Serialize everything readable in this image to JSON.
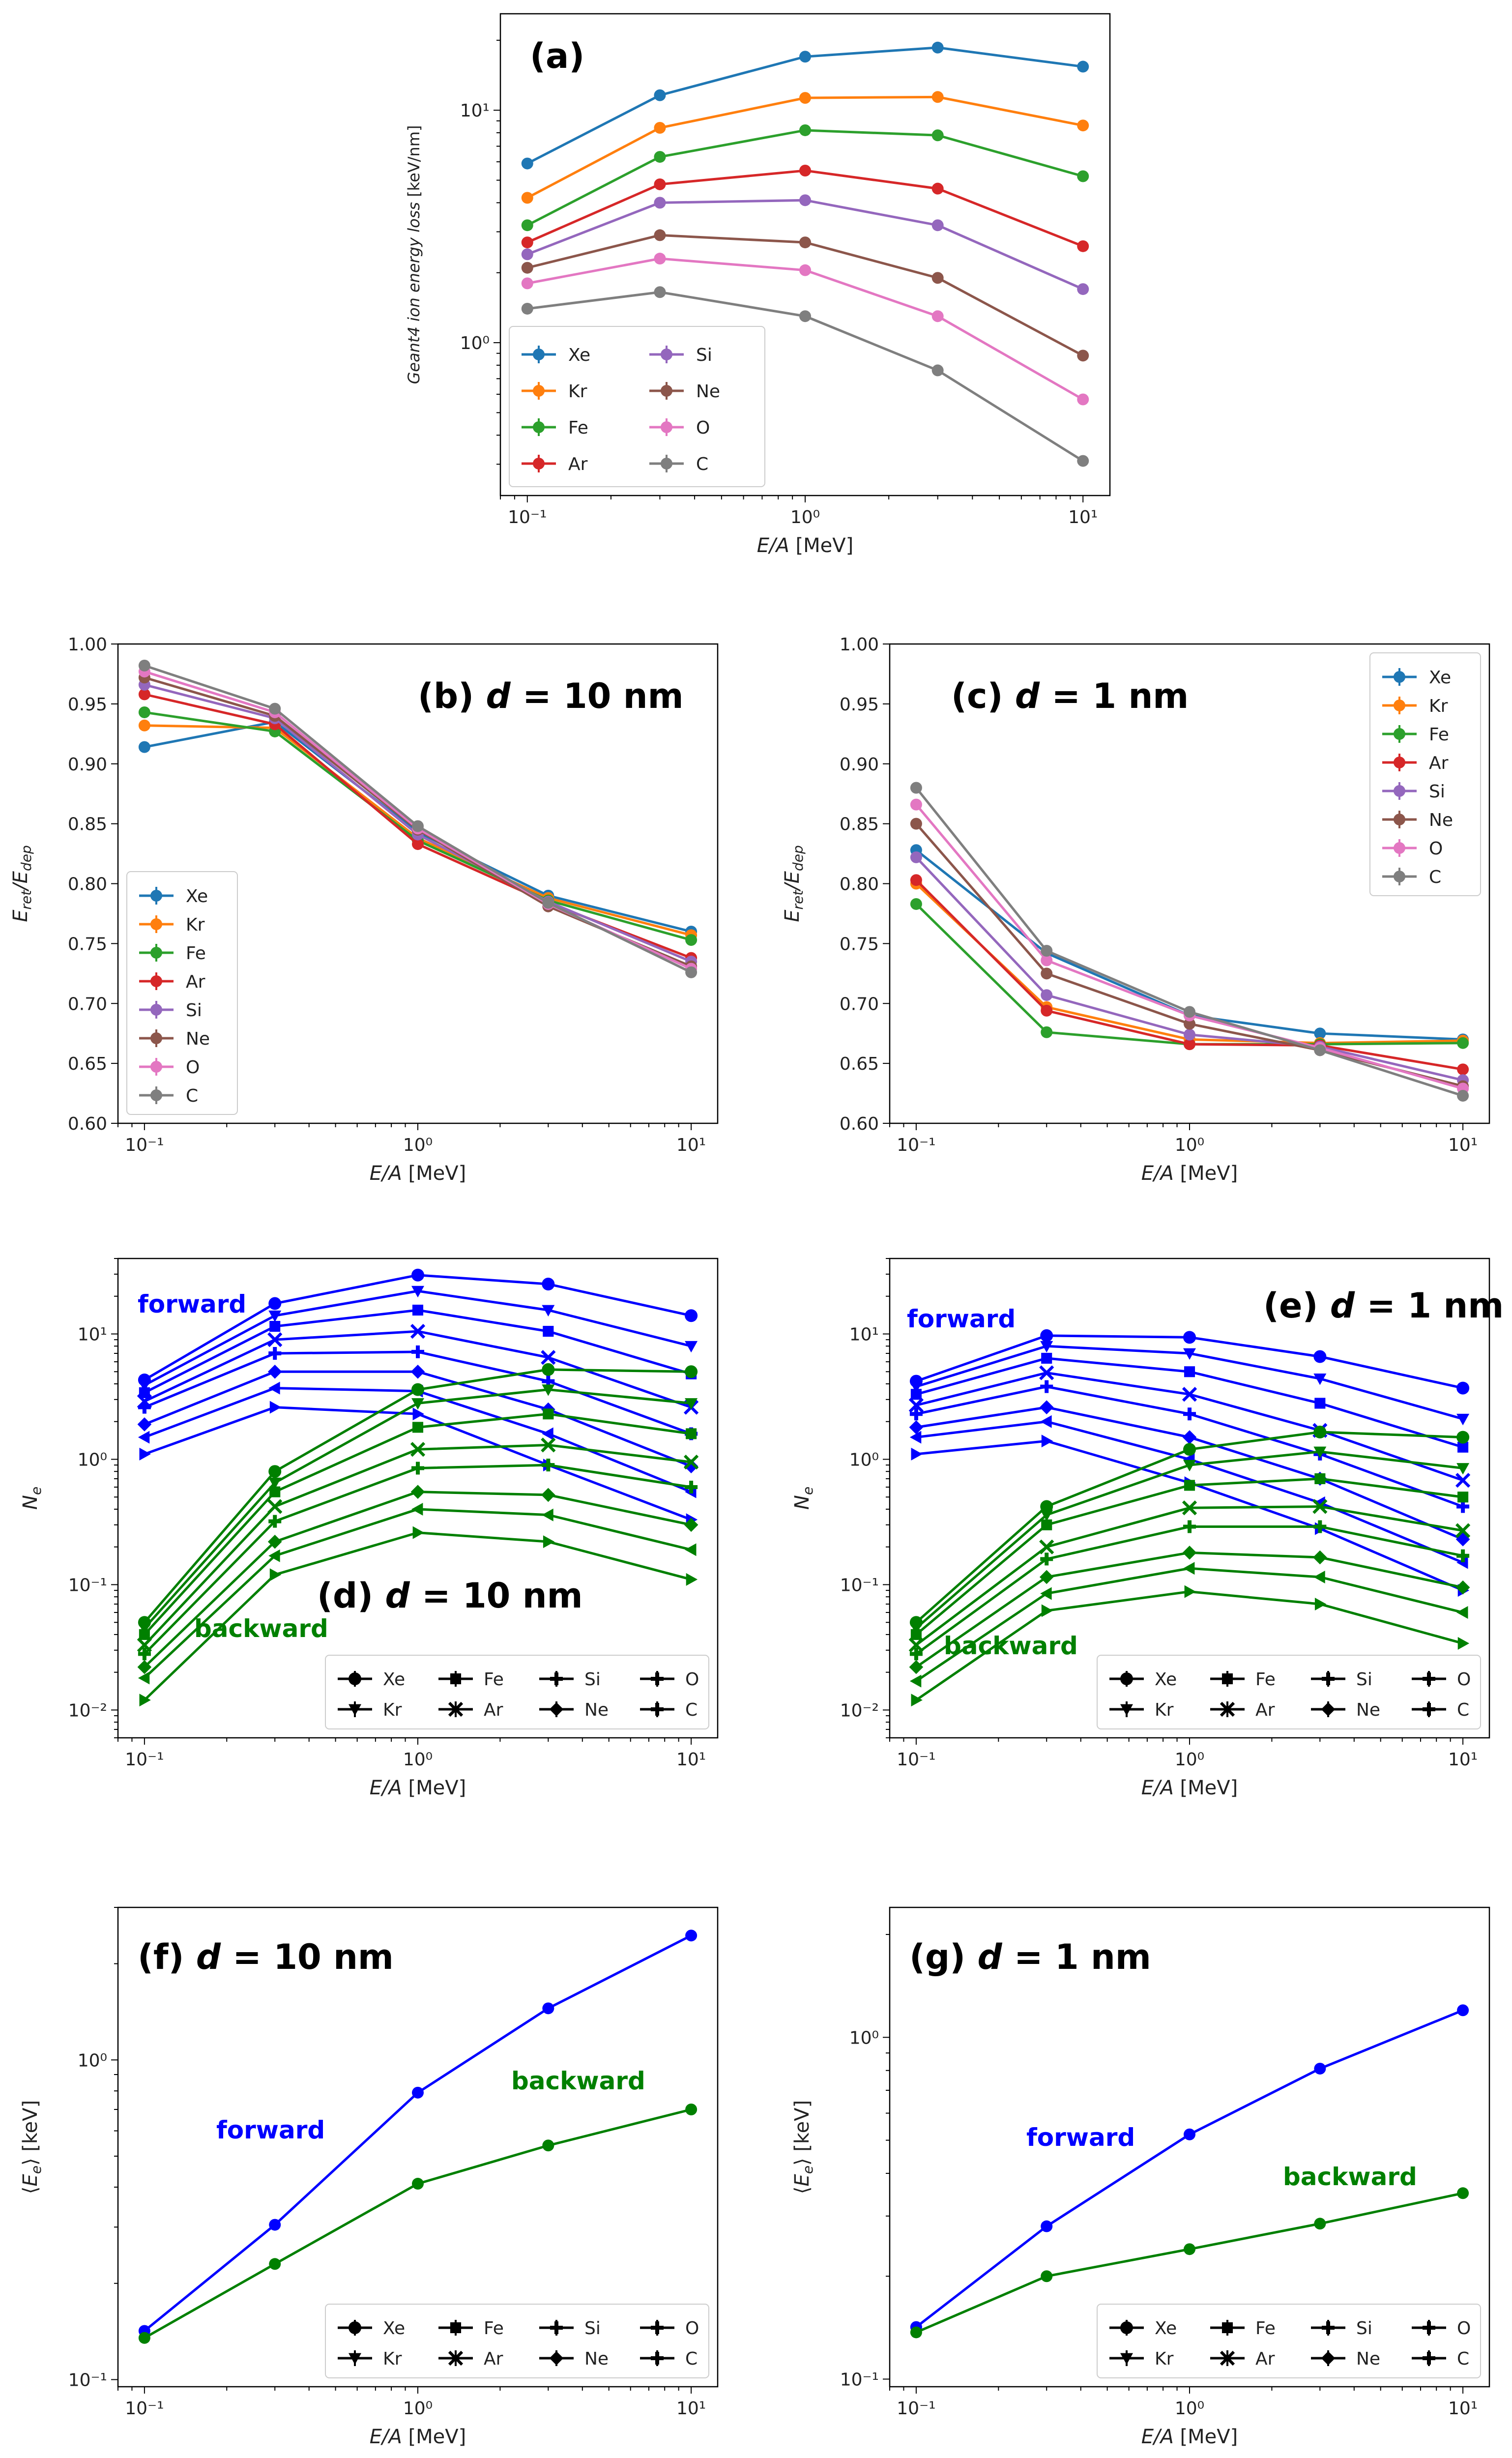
{
  "figure": {
    "caption": ""
  },
  "series_colors": {
    "Xe": "#1f77b4",
    "Kr": "#ff7f0e",
    "Fe": "#2ca02c",
    "Ar": "#d62728",
    "Si": "#9467bd",
    "Ne": "#8c564b",
    "O": "#e377c2",
    "C": "#7f7f7f",
    "forward": "#0000ff",
    "backward": "#008000"
  },
  "chart_data": [
    {
      "id": "a",
      "type": "line",
      "title": "(a)",
      "xlabel": "E/A [MeV]",
      "ylabel": "Geant4 ion energy loss [keV/nm]",
      "xscale": "log",
      "yscale": "log",
      "xlim": [
        0.08,
        12.5
      ],
      "ylim": [
        0.22,
        26
      ],
      "xticks": [
        "10⁻¹",
        "10⁰",
        "10¹"
      ],
      "yticks": [
        "10⁰",
        "10¹"
      ],
      "x": [
        0.1,
        0.3,
        1,
        3,
        10
      ],
      "legend_position": "lower-left",
      "legend_cols": 2,
      "series": [
        {
          "name": "Xe",
          "values": [
            5.9,
            11.6,
            17.0,
            18.6,
            15.4
          ]
        },
        {
          "name": "Kr",
          "values": [
            4.2,
            8.4,
            11.3,
            11.4,
            8.6
          ]
        },
        {
          "name": "Fe",
          "values": [
            3.2,
            6.3,
            8.2,
            7.8,
            5.2
          ]
        },
        {
          "name": "Ar",
          "values": [
            2.7,
            4.8,
            5.5,
            4.6,
            2.6
          ]
        },
        {
          "name": "Si",
          "values": [
            2.4,
            4.0,
            4.1,
            3.2,
            1.7
          ]
        },
        {
          "name": "Ne",
          "values": [
            2.1,
            2.9,
            2.7,
            1.9,
            0.88
          ]
        },
        {
          "name": "O",
          "values": [
            1.8,
            2.3,
            2.05,
            1.3,
            0.57
          ]
        },
        {
          "name": "C",
          "values": [
            1.4,
            1.65,
            1.3,
            0.76,
            0.31
          ]
        }
      ]
    },
    {
      "id": "b",
      "type": "line",
      "title": "(b) d = 10 nm",
      "xlabel": "E/A [MeV]",
      "ylabel": "E_ret/E_dep",
      "xscale": "log",
      "yscale": "linear",
      "xlim": [
        0.08,
        12.5
      ],
      "ylim": [
        0.6,
        1.0
      ],
      "xticks": [
        "10⁻¹",
        "10⁰",
        "10¹"
      ],
      "yticks": [
        "0.60",
        "0.65",
        "0.70",
        "0.75",
        "0.80",
        "0.85",
        "0.90",
        "0.95",
        "1.00"
      ],
      "x": [
        0.1,
        0.3,
        1,
        3,
        10
      ],
      "legend_position": "lower-left",
      "legend_cols": 1,
      "series": [
        {
          "name": "Xe",
          "values": [
            0.914,
            0.935,
            0.843,
            0.79,
            0.76
          ]
        },
        {
          "name": "Kr",
          "values": [
            0.932,
            0.93,
            0.838,
            0.788,
            0.757
          ]
        },
        {
          "name": "Fe",
          "values": [
            0.943,
            0.927,
            0.836,
            0.786,
            0.753
          ]
        },
        {
          "name": "Ar",
          "values": [
            0.958,
            0.933,
            0.833,
            0.784,
            0.738
          ]
        },
        {
          "name": "Si",
          "values": [
            0.966,
            0.938,
            0.841,
            0.785,
            0.735
          ]
        },
        {
          "name": "Ne",
          "values": [
            0.972,
            0.94,
            0.845,
            0.781,
            0.731
          ]
        },
        {
          "name": "O",
          "values": [
            0.977,
            0.943,
            0.846,
            0.783,
            0.729
          ]
        },
        {
          "name": "C",
          "values": [
            0.982,
            0.946,
            0.848,
            0.784,
            0.726
          ]
        }
      ]
    },
    {
      "id": "c",
      "type": "line",
      "title": "(c) d = 1 nm",
      "xlabel": "E/A [MeV]",
      "ylabel": "E_ret/E_dep",
      "xscale": "log",
      "yscale": "linear",
      "xlim": [
        0.08,
        12.5
      ],
      "ylim": [
        0.6,
        1.0
      ],
      "xticks": [
        "10⁻¹",
        "10⁰",
        "10¹"
      ],
      "yticks": [
        "0.60",
        "0.65",
        "0.70",
        "0.75",
        "0.80",
        "0.85",
        "0.90",
        "0.95",
        "1.00"
      ],
      "x": [
        0.1,
        0.3,
        1,
        3,
        10
      ],
      "legend_position": "upper-right",
      "legend_cols": 1,
      "series": [
        {
          "name": "Xe",
          "values": [
            0.828,
            0.742,
            0.69,
            0.675,
            0.67
          ]
        },
        {
          "name": "Kr",
          "values": [
            0.8,
            0.697,
            0.67,
            0.667,
            0.669
          ]
        },
        {
          "name": "Fe",
          "values": [
            0.783,
            0.676,
            0.666,
            0.666,
            0.667
          ]
        },
        {
          "name": "Ar",
          "values": [
            0.803,
            0.694,
            0.666,
            0.665,
            0.645
          ]
        },
        {
          "name": "Si",
          "values": [
            0.822,
            0.707,
            0.674,
            0.664,
            0.636
          ]
        },
        {
          "name": "Ne",
          "values": [
            0.85,
            0.725,
            0.683,
            0.661,
            0.631
          ]
        },
        {
          "name": "O",
          "values": [
            0.866,
            0.736,
            0.69,
            0.663,
            0.629
          ]
        },
        {
          "name": "C",
          "values": [
            0.88,
            0.744,
            0.693,
            0.661,
            0.623
          ]
        }
      ]
    },
    {
      "id": "d",
      "type": "line",
      "title": "(d) d = 10 nm",
      "xlabel": "E/A [MeV]",
      "ylabel": "N_e",
      "xscale": "log",
      "yscale": "log",
      "xlim": [
        0.08,
        12.5
      ],
      "ylim": [
        0.006,
        40
      ],
      "xticks": [
        "10⁻¹",
        "10⁰",
        "10¹"
      ],
      "yticks": [
        "10⁻²",
        "10⁻¹",
        "10⁰",
        "10¹"
      ],
      "x": [
        0.1,
        0.3,
        1,
        3,
        10
      ],
      "annotations": [
        "forward",
        "backward"
      ],
      "legend_position": "lower-right",
      "legend_cols": 3,
      "markers": {
        "Xe": "o",
        "Kr": "v",
        "Fe": "s",
        "Ar": "x",
        "Si": "P",
        "Ne": "D",
        "O": "<",
        "C": ">"
      },
      "series": [
        {
          "name": "Xe",
          "group": "forward",
          "values": [
            4.3,
            17.5,
            29.5,
            25.0,
            14.0
          ]
        },
        {
          "name": "Kr",
          "group": "forward",
          "values": [
            3.9,
            14.0,
            22.0,
            15.5,
            8.0
          ]
        },
        {
          "name": "Fe",
          "group": "forward",
          "values": [
            3.4,
            11.5,
            15.5,
            10.5,
            4.8
          ]
        },
        {
          "name": "Ar",
          "group": "forward",
          "values": [
            2.9,
            9.0,
            10.5,
            6.5,
            2.6
          ]
        },
        {
          "name": "Si",
          "group": "forward",
          "values": [
            2.6,
            7.0,
            7.2,
            4.2,
            1.6
          ]
        },
        {
          "name": "Ne",
          "group": "forward",
          "values": [
            1.9,
            5.0,
            5.0,
            2.5,
            0.88
          ]
        },
        {
          "name": "O",
          "group": "forward",
          "values": [
            1.5,
            3.7,
            3.5,
            1.6,
            0.55
          ]
        },
        {
          "name": "C",
          "group": "forward",
          "values": [
            1.1,
            2.6,
            2.3,
            0.9,
            0.33
          ]
        },
        {
          "name": "Xe",
          "group": "backward",
          "values": [
            0.05,
            0.8,
            3.6,
            5.2,
            5.0
          ]
        },
        {
          "name": "Kr",
          "group": "backward",
          "values": [
            0.045,
            0.65,
            2.8,
            3.6,
            2.8
          ]
        },
        {
          "name": "Fe",
          "group": "backward",
          "values": [
            0.04,
            0.55,
            1.8,
            2.3,
            1.6
          ]
        },
        {
          "name": "Ar",
          "group": "backward",
          "values": [
            0.033,
            0.42,
            1.2,
            1.3,
            0.95
          ]
        },
        {
          "name": "Si",
          "group": "backward",
          "values": [
            0.028,
            0.32,
            0.85,
            0.9,
            0.6
          ]
        },
        {
          "name": "Ne",
          "group": "backward",
          "values": [
            0.022,
            0.22,
            0.55,
            0.52,
            0.3
          ]
        },
        {
          "name": "O",
          "group": "backward",
          "values": [
            0.018,
            0.17,
            0.4,
            0.36,
            0.19
          ]
        },
        {
          "name": "C",
          "group": "backward",
          "values": [
            0.012,
            0.12,
            0.26,
            0.22,
            0.11
          ]
        }
      ]
    },
    {
      "id": "e",
      "type": "line",
      "title": "(e) d = 1 nm",
      "xlabel": "E/A [MeV]",
      "ylabel": "N_e",
      "xscale": "log",
      "yscale": "log",
      "xlim": [
        0.08,
        12.5
      ],
      "ylim": [
        0.006,
        40
      ],
      "xticks": [
        "10⁻¹",
        "10⁰",
        "10¹"
      ],
      "yticks": [
        "10⁻²",
        "10⁻¹",
        "10⁰",
        "10¹"
      ],
      "x": [
        0.1,
        0.3,
        1,
        3,
        10
      ],
      "annotations": [
        "forward",
        "backward"
      ],
      "legend_position": "lower-right",
      "legend_cols": 3,
      "markers": {
        "Xe": "o",
        "Kr": "v",
        "Fe": "s",
        "Ar": "x",
        "Si": "P",
        "Ne": "D",
        "O": "<",
        "C": ">"
      },
      "series": [
        {
          "name": "Xe",
          "group": "forward",
          "values": [
            4.2,
            9.7,
            9.4,
            6.6,
            3.7
          ]
        },
        {
          "name": "Kr",
          "group": "forward",
          "values": [
            3.8,
            8.0,
            7.0,
            4.4,
            2.1
          ]
        },
        {
          "name": "Fe",
          "group": "forward",
          "values": [
            3.3,
            6.4,
            5.0,
            2.8,
            1.25
          ]
        },
        {
          "name": "Ar",
          "group": "forward",
          "values": [
            2.7,
            4.9,
            3.3,
            1.7,
            0.68
          ]
        },
        {
          "name": "Si",
          "group": "forward",
          "values": [
            2.3,
            3.8,
            2.3,
            1.1,
            0.42
          ]
        },
        {
          "name": "Ne",
          "group": "forward",
          "values": [
            1.8,
            2.6,
            1.5,
            0.7,
            0.23
          ]
        },
        {
          "name": "O",
          "group": "forward",
          "values": [
            1.5,
            2.0,
            1.0,
            0.45,
            0.15
          ]
        },
        {
          "name": "C",
          "group": "forward",
          "values": [
            1.1,
            1.4,
            0.65,
            0.28,
            0.09
          ]
        },
        {
          "name": "Xe",
          "group": "backward",
          "values": [
            0.05,
            0.42,
            1.2,
            1.65,
            1.5
          ]
        },
        {
          "name": "Kr",
          "group": "backward",
          "values": [
            0.045,
            0.36,
            0.9,
            1.15,
            0.85
          ]
        },
        {
          "name": "Fe",
          "group": "backward",
          "values": [
            0.04,
            0.3,
            0.62,
            0.7,
            0.5
          ]
        },
        {
          "name": "Ar",
          "group": "backward",
          "values": [
            0.033,
            0.2,
            0.41,
            0.42,
            0.27
          ]
        },
        {
          "name": "Si",
          "group": "backward",
          "values": [
            0.028,
            0.16,
            0.29,
            0.29,
            0.17
          ]
        },
        {
          "name": "Ne",
          "group": "backward",
          "values": [
            0.022,
            0.115,
            0.18,
            0.165,
            0.095
          ]
        },
        {
          "name": "O",
          "group": "backward",
          "values": [
            0.017,
            0.085,
            0.135,
            0.115,
            0.06
          ]
        },
        {
          "name": "C",
          "group": "backward",
          "values": [
            0.012,
            0.062,
            0.088,
            0.07,
            0.034
          ]
        }
      ]
    },
    {
      "id": "f",
      "type": "line",
      "title": "(f) d = 10 nm",
      "xlabel": "E/A [MeV]",
      "ylabel": "⟨E_e⟩ [keV]",
      "xscale": "log",
      "yscale": "log",
      "xlim": [
        0.08,
        12.5
      ],
      "ylim": [
        0.095,
        3.0
      ],
      "xticks": [
        "10⁻¹",
        "10⁰",
        "10¹"
      ],
      "yticks": [
        "10⁻¹",
        "10⁰"
      ],
      "x": [
        0.1,
        0.3,
        1,
        3,
        10
      ],
      "annotations": [
        "forward",
        "backward"
      ],
      "legend_position": "lower-right",
      "legend_cols": 3,
      "series": [
        {
          "name": "forward",
          "values": [
            0.142,
            0.305,
            0.79,
            1.45,
            2.45
          ]
        },
        {
          "name": "backward",
          "values": [
            0.135,
            0.23,
            0.41,
            0.54,
            0.7
          ]
        }
      ]
    },
    {
      "id": "g",
      "type": "line",
      "title": "(g) d = 1 nm",
      "xlabel": "E/A [MeV]",
      "ylabel": "⟨E_e⟩ [keV]",
      "xscale": "log",
      "yscale": "log",
      "xlim": [
        0.08,
        12.5
      ],
      "ylim": [
        0.095,
        2.4
      ],
      "xticks": [
        "10⁻¹",
        "10⁰",
        "10¹"
      ],
      "yticks": [
        "10⁻¹",
        "10⁰"
      ],
      "x": [
        0.1,
        0.3,
        1,
        3,
        10
      ],
      "annotations": [
        "forward",
        "backward"
      ],
      "legend_position": "lower-right",
      "legend_cols": 3,
      "series": [
        {
          "name": "forward",
          "values": [
            0.142,
            0.28,
            0.52,
            0.81,
            1.2
          ]
        },
        {
          "name": "backward",
          "values": [
            0.137,
            0.2,
            0.24,
            0.285,
            0.35
          ]
        }
      ]
    }
  ]
}
